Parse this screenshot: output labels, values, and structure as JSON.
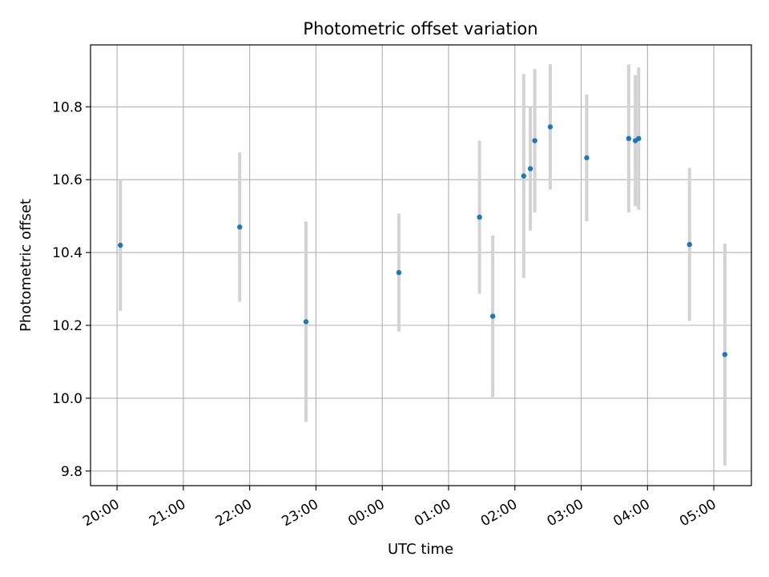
{
  "chart_data": {
    "type": "scatter",
    "title": "Photometric offset variation",
    "xlabel": "UTC time",
    "ylabel": "Photometric offset",
    "x_ticks": [
      "20:00",
      "21:00",
      "22:00",
      "23:00",
      "00:00",
      "01:00",
      "02:00",
      "03:00",
      "04:00",
      "05:00"
    ],
    "y_ticks": [
      "9.8",
      "10.0",
      "10.2",
      "10.4",
      "10.6",
      "10.8"
    ],
    "xlim": [
      "19:36",
      "05:34"
    ],
    "ylim": [
      9.76,
      10.97
    ],
    "grid": true,
    "colors": {
      "points": "#1f77b4",
      "errorbars": "#d3d3d3",
      "grid": "#b0b0b0"
    },
    "points": [
      {
        "x": "20:03",
        "y": 10.42,
        "err": 0.18
      },
      {
        "x": "21:51",
        "y": 10.47,
        "err": 0.205
      },
      {
        "x": "22:51",
        "y": 10.21,
        "err": 0.275
      },
      {
        "x": "00:15",
        "y": 10.345,
        "err": 0.162
      },
      {
        "x": "01:28",
        "y": 10.497,
        "err": 0.21
      },
      {
        "x": "01:40",
        "y": 10.225,
        "err": 0.222
      },
      {
        "x": "02:08",
        "y": 10.61,
        "err": 0.28
      },
      {
        "x": "02:14",
        "y": 10.63,
        "err": 0.17
      },
      {
        "x": "02:18",
        "y": 10.707,
        "err": 0.197
      },
      {
        "x": "02:32",
        "y": 10.745,
        "err": 0.172
      },
      {
        "x": "03:05",
        "y": 10.66,
        "err": 0.174
      },
      {
        "x": "03:43",
        "y": 10.713,
        "err": 0.203
      },
      {
        "x": "03:49",
        "y": 10.707,
        "err": 0.18
      },
      {
        "x": "03:52",
        "y": 10.713,
        "err": 0.195
      },
      {
        "x": "04:38",
        "y": 10.422,
        "err": 0.21
      },
      {
        "x": "05:10",
        "y": 10.12,
        "err": 0.305
      }
    ]
  }
}
